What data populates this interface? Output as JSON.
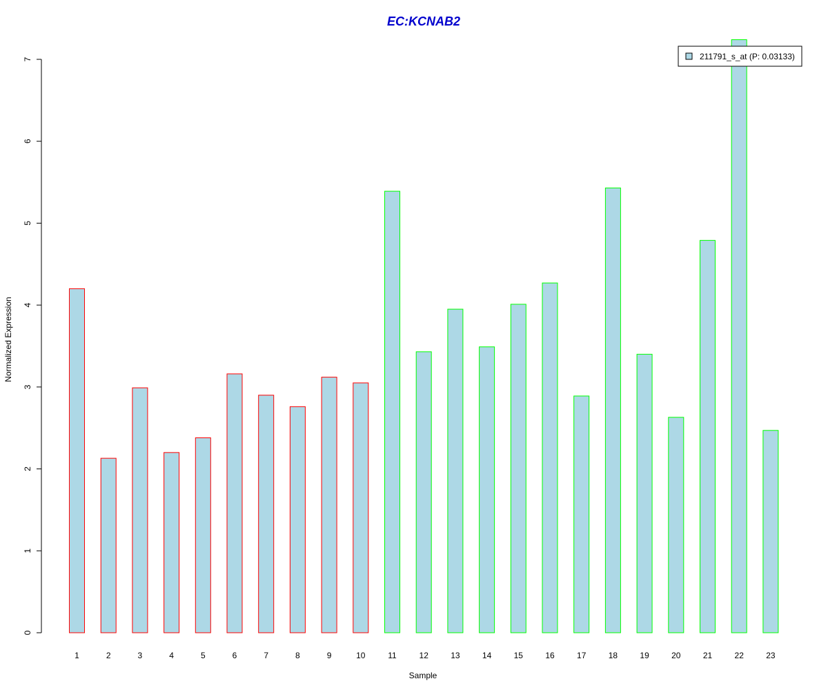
{
  "chart_data": {
    "type": "bar",
    "title": "EC:KCNAB2",
    "xlabel": "Sample",
    "ylabel": "Normalized Expression",
    "categories": [
      "1",
      "2",
      "3",
      "4",
      "5",
      "6",
      "7",
      "8",
      "9",
      "10",
      "11",
      "12",
      "13",
      "14",
      "15",
      "16",
      "17",
      "18",
      "19",
      "20",
      "21",
      "22",
      "23"
    ],
    "series": [
      {
        "name": "211791_s_at (P: 0.03133)",
        "values": [
          4.2,
          2.13,
          2.99,
          2.2,
          2.38,
          3.16,
          2.9,
          2.76,
          3.12,
          3.05,
          5.39,
          3.43,
          3.95,
          3.49,
          4.01,
          4.27,
          2.89,
          5.43,
          3.4,
          2.63,
          4.79,
          7.24,
          2.47
        ]
      }
    ],
    "ylim": [
      0,
      7
    ],
    "yticks": [
      0,
      1,
      2,
      3,
      4,
      5,
      6,
      7
    ],
    "grid": false,
    "legend_position": "top-right",
    "colors": {
      "bar_fill": "#add8e6",
      "group1_border": "#ff0000",
      "group2_border": "#00ff00",
      "title": "#0000cd"
    },
    "border_groups": [
      "red",
      "red",
      "red",
      "red",
      "red",
      "red",
      "red",
      "red",
      "red",
      "red",
      "green",
      "green",
      "green",
      "green",
      "green",
      "green",
      "green",
      "green",
      "green",
      "green",
      "green",
      "green",
      "green"
    ]
  }
}
